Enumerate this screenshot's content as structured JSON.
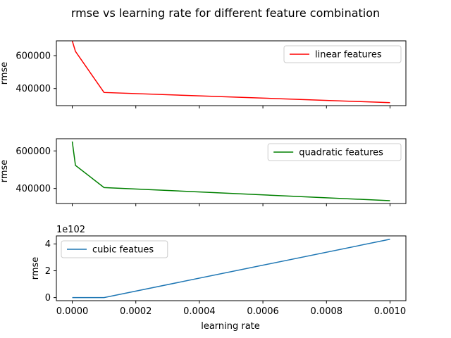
{
  "figure": {
    "title": "rmse vs learning rate for different feature combination"
  },
  "chart_data": {
    "type": "line",
    "xlabel": "learning rate",
    "xlim": [
      -5e-05,
      0.00105
    ],
    "x_ticks": [
      0.0,
      0.0002,
      0.0004,
      0.0006,
      0.0008,
      0.001
    ],
    "x_tick_labels": [
      "0.0000",
      "0.0002",
      "0.0004",
      "0.0006",
      "0.0008",
      "0.0010"
    ],
    "subplots": [
      {
        "id": "linear",
        "ylabel": "rmse",
        "ylim": [
          296000,
          690000
        ],
        "y_ticks": [
          400000,
          600000
        ],
        "y_tick_labels": [
          "400000",
          "600000"
        ],
        "offset_text": "",
        "legend_position": "top-right",
        "series": [
          {
            "name": "linear features",
            "color": "#ff0000",
            "x": [
              0.0,
              1e-05,
              0.0001,
              0.001
            ],
            "y": [
              690000,
              626000,
              376000,
              314000
            ]
          }
        ]
      },
      {
        "id": "quadratic",
        "ylabel": "rmse",
        "ylim": [
          320000,
          665000
        ],
        "y_ticks": [
          400000,
          600000
        ],
        "y_tick_labels": [
          "400000",
          "600000"
        ],
        "offset_text": "",
        "legend_position": "top-right",
        "series": [
          {
            "name": "quadratic features",
            "color": "#008000",
            "x": [
              0.0,
              1e-05,
              0.0001,
              0.001
            ],
            "y": [
              650000,
              523000,
              405000,
              335000
            ]
          }
        ]
      },
      {
        "id": "cubic",
        "ylabel": "rmse",
        "ylim": [
          -0.23,
          4.6
        ],
        "y_ticks": [
          0,
          2,
          4
        ],
        "y_tick_labels": [
          "0",
          "2",
          "4"
        ],
        "offset_text": "1e102",
        "legend_position": "top-left",
        "series": [
          {
            "name": "cubic featues",
            "color": "#1f77b4",
            "x": [
              0.0,
              1e-05,
              0.0001,
              0.001
            ],
            "y": [
              0.0,
              0.0,
              0.0,
              4.35
            ]
          }
        ]
      }
    ]
  }
}
